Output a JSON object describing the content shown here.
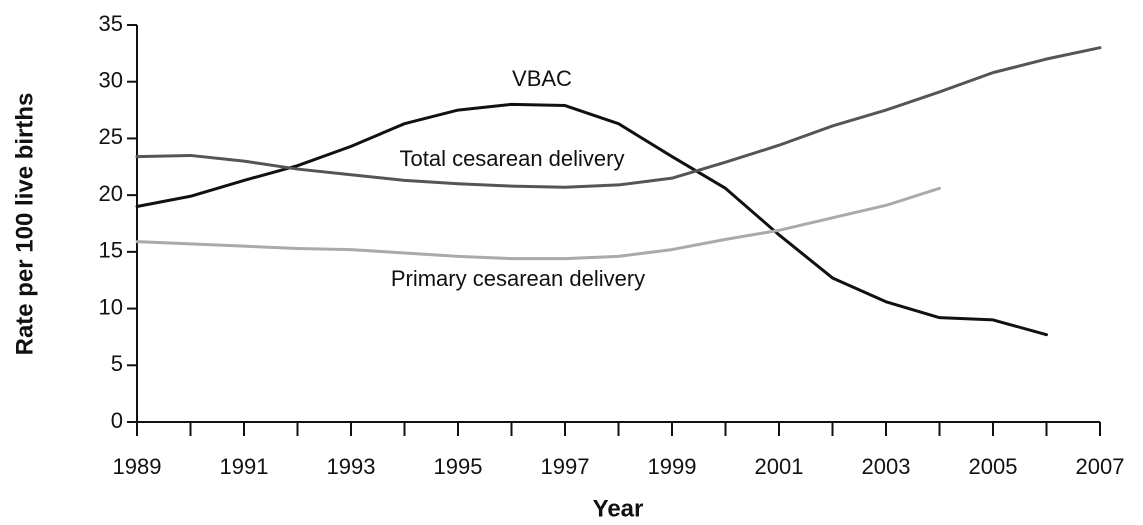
{
  "chart_data": {
    "type": "line",
    "xlabel": "Year",
    "ylabel": "Rate per 100 live births",
    "x": [
      1989,
      1990,
      1991,
      1992,
      1993,
      1994,
      1995,
      1996,
      1997,
      1998,
      1999,
      2000,
      2001,
      2002,
      2003,
      2004,
      2005,
      2006,
      2007
    ],
    "series": [
      {
        "name": "VBAC",
        "color": "#111111",
        "values": [
          19.0,
          19.9,
          21.3,
          22.6,
          24.3,
          26.3,
          27.5,
          28.0,
          27.9,
          26.3,
          23.4,
          20.6,
          16.5,
          12.7,
          10.6,
          9.2,
          9.0,
          7.7,
          null
        ]
      },
      {
        "name": "Total cesarean delivery",
        "color": "#555555",
        "values": [
          23.4,
          23.5,
          23.0,
          22.3,
          21.8,
          21.3,
          21.0,
          20.8,
          20.7,
          20.9,
          21.5,
          22.9,
          24.4,
          26.1,
          27.5,
          29.1,
          30.8,
          32.0,
          33.0
        ]
      },
      {
        "name": "Primary cesarean delivery",
        "color": "#aaaaaa",
        "values": [
          15.9,
          15.7,
          15.5,
          15.3,
          15.2,
          14.9,
          14.6,
          14.4,
          14.4,
          14.6,
          15.2,
          16.1,
          16.9,
          18.0,
          19.1,
          20.6,
          null,
          null,
          null
        ]
      }
    ],
    "xlim": [
      1989,
      2007
    ],
    "xticks": [
      1989,
      1991,
      1993,
      1995,
      1997,
      1999,
      2001,
      2003,
      2005,
      2007
    ],
    "xminorticks": [
      1990,
      1992,
      1994,
      1996,
      1998,
      2000,
      2002,
      2004,
      2006
    ],
    "ylim": [
      0,
      35
    ],
    "yticks": [
      0,
      5,
      10,
      15,
      20,
      25,
      30,
      35
    ]
  }
}
